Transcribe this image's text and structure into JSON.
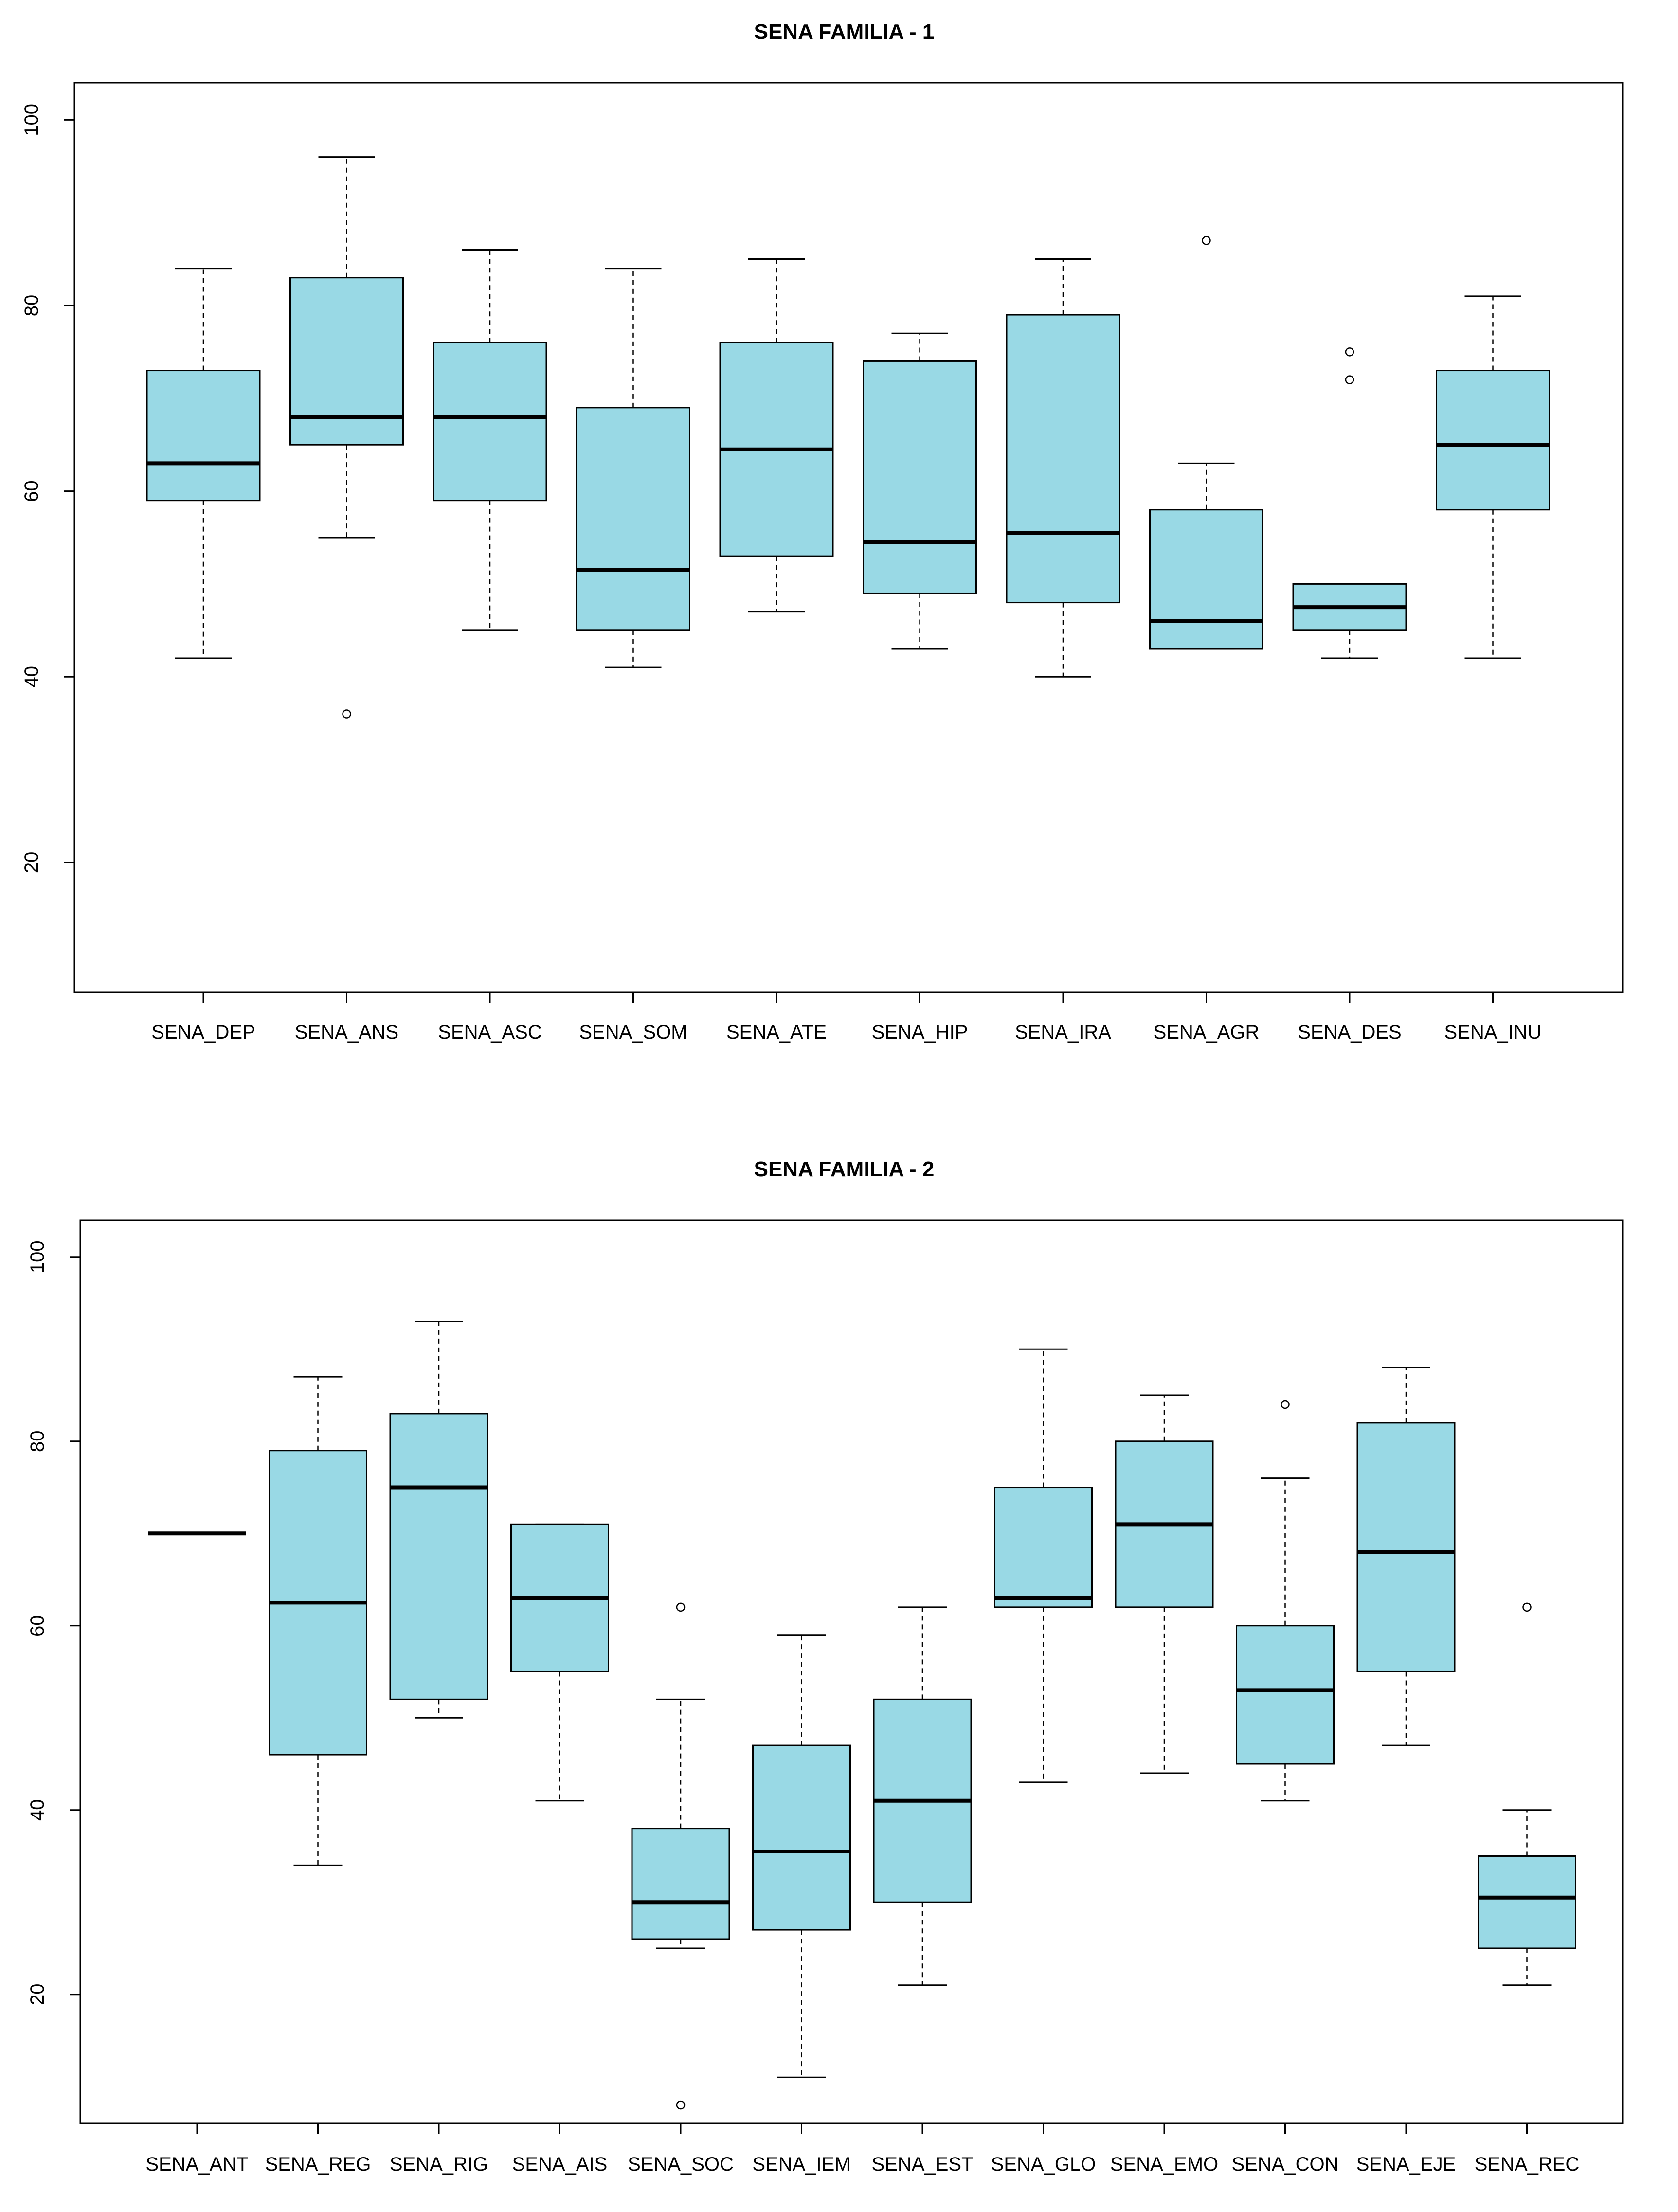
{
  "chart_data": [
    {
      "type": "boxplot",
      "title": "SENA FAMILIA - 1",
      "xlabel": "",
      "ylabel": "",
      "ylim": [
        6,
        104
      ],
      "yticks": [
        20,
        40,
        60,
        80,
        100
      ],
      "box_color": "#99d9e5",
      "categories": [
        "SENA_DEP",
        "SENA_ANS",
        "SENA_ASC",
        "SENA_SOM",
        "SENA_ATE",
        "SENA_HIP",
        "SENA_IRA",
        "SENA_AGR",
        "SENA_DES",
        "SENA_INU"
      ],
      "boxes": [
        {
          "min": 42,
          "q1": 59,
          "median": 63,
          "q3": 73,
          "max": 84,
          "outliers": []
        },
        {
          "min": 55,
          "q1": 65,
          "median": 68,
          "q3": 83,
          "max": 96,
          "outliers": [
            36
          ]
        },
        {
          "min": 45,
          "q1": 59,
          "median": 68,
          "q3": 76,
          "max": 86,
          "outliers": []
        },
        {
          "min": 41,
          "q1": 45,
          "median": 51.5,
          "q3": 69,
          "max": 84,
          "outliers": []
        },
        {
          "min": 47,
          "q1": 53,
          "median": 64.5,
          "q3": 76,
          "max": 85,
          "outliers": []
        },
        {
          "min": 43,
          "q1": 49,
          "median": 54.5,
          "q3": 74,
          "max": 77,
          "outliers": []
        },
        {
          "min": 40,
          "q1": 48,
          "median": 55.5,
          "q3": 79,
          "max": 85,
          "outliers": []
        },
        {
          "min": 43,
          "q1": 43,
          "median": 46,
          "q3": 58,
          "max": 63,
          "outliers": [
            87
          ]
        },
        {
          "min": 42,
          "q1": 45,
          "median": 47.5,
          "q3": 50,
          "max": 50,
          "outliers": [
            75,
            72
          ]
        },
        {
          "min": 42,
          "q1": 58,
          "median": 65,
          "q3": 73,
          "max": 81,
          "outliers": []
        }
      ]
    },
    {
      "type": "boxplot",
      "title": "SENA FAMILIA - 2",
      "xlabel": "",
      "ylabel": "",
      "ylim": [
        6,
        104
      ],
      "yticks": [
        20,
        40,
        60,
        80,
        100
      ],
      "box_color": "#99d9e5",
      "categories": [
        "SENA_ANT",
        "SENA_REG",
        "SENA_RIG",
        "SENA_AIS",
        "SENA_SOC",
        "SENA_IEM",
        "SENA_EST",
        "SENA_GLO",
        "SENA_EMO",
        "SENA_CON",
        "SENA_EJE",
        "SENA_REC"
      ],
      "boxes": [
        {
          "min": 70,
          "q1": 70,
          "median": 70,
          "q3": 70,
          "max": 70,
          "outliers": []
        },
        {
          "min": 34,
          "q1": 46,
          "median": 62.5,
          "q3": 79,
          "max": 87,
          "outliers": []
        },
        {
          "min": 50,
          "q1": 52,
          "median": 75,
          "q3": 83,
          "max": 93,
          "outliers": []
        },
        {
          "min": 41,
          "q1": 55,
          "median": 63,
          "q3": 71,
          "max": 71,
          "outliers": []
        },
        {
          "min": 25,
          "q1": 26,
          "median": 30,
          "q3": 38,
          "max": 52,
          "outliers": [
            62,
            8
          ]
        },
        {
          "min": 11,
          "q1": 27,
          "median": 35.5,
          "q3": 47,
          "max": 59,
          "outliers": []
        },
        {
          "min": 21,
          "q1": 30,
          "median": 41,
          "q3": 52,
          "max": 62,
          "outliers": []
        },
        {
          "min": 43,
          "q1": 62,
          "median": 63,
          "q3": 75,
          "max": 90,
          "outliers": []
        },
        {
          "min": 44,
          "q1": 62,
          "median": 71,
          "q3": 80,
          "max": 85,
          "outliers": []
        },
        {
          "min": 41,
          "q1": 45,
          "median": 53,
          "q3": 60,
          "max": 76,
          "outliers": [
            84
          ]
        },
        {
          "min": 47,
          "q1": 55,
          "median": 68,
          "q3": 82,
          "max": 88,
          "outliers": []
        },
        {
          "min": 21,
          "q1": 25,
          "median": 30.5,
          "q3": 35,
          "max": 40,
          "outliers": [
            62
          ]
        }
      ]
    }
  ]
}
